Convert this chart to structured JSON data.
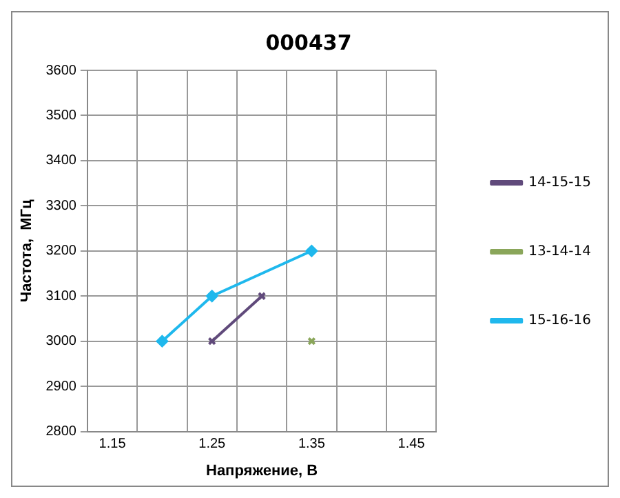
{
  "chart_data": {
    "type": "line",
    "title": "000437",
    "xlabel": "Напряжение, В",
    "ylabel": "Частота,  МГц",
    "xlim": [
      1.125,
      1.475
    ],
    "xticks": [
      {
        "value": 1.125,
        "label": null
      },
      1.15,
      {
        "value": 1.175,
        "label": null
      },
      {
        "value": 1.225,
        "label": null
      },
      1.25,
      {
        "value": 1.275,
        "label": null
      },
      {
        "value": 1.325,
        "label": null
      },
      1.35,
      {
        "value": 1.375,
        "label": null
      },
      {
        "value": 1.425,
        "label": null
      },
      1.45,
      {
        "value": 1.475,
        "label": null
      }
    ],
    "ylim": [
      2800,
      3600
    ],
    "yticks": [
      2800,
      2900,
      3000,
      3100,
      3200,
      3300,
      3400,
      3500,
      3600
    ],
    "grid": true,
    "legend": "right",
    "line_style": "solid",
    "series": [
      {
        "name": "14-15-15",
        "color": "#604a7b",
        "marker": "cross",
        "x": [
          1.25,
          1.3
        ],
        "values": [
          3000,
          3100
        ]
      },
      {
        "name": "13-14-14",
        "color": "#8aa65a",
        "marker": "cross",
        "x": [
          1.35
        ],
        "values": [
          3000
        ]
      },
      {
        "name": "15-16-16",
        "color": "#1fb8ed",
        "marker": "diamond",
        "x": [
          1.2,
          1.25,
          1.35
        ],
        "values": [
          3000,
          3100,
          3200
        ]
      }
    ]
  }
}
